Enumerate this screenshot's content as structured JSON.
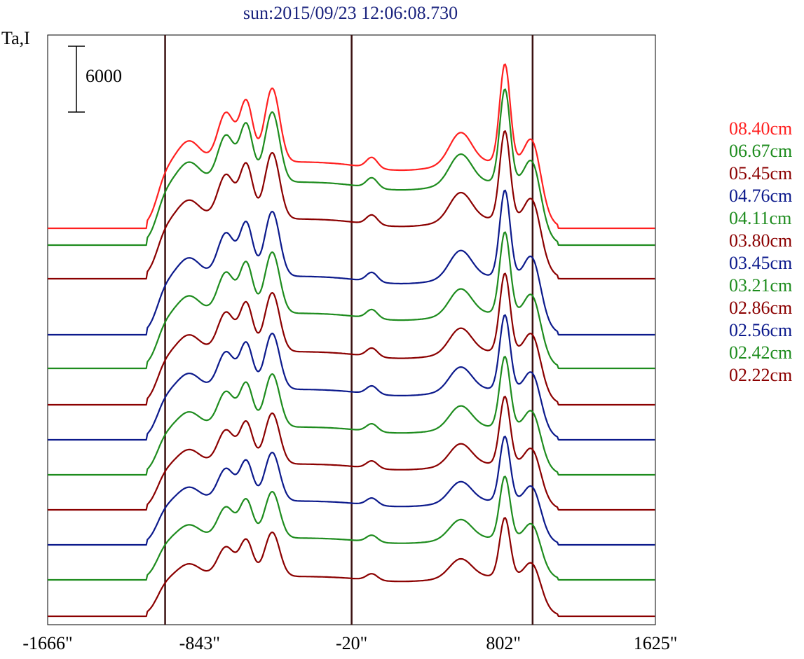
{
  "chart_data": {
    "type": "line",
    "title": "sun:2015/09/23 12:06:08.730",
    "ylabel": "Ta,I",
    "scale_bar": {
      "value": 6000,
      "label": "6000"
    },
    "x_ticks": [
      "-1666\"",
      "-843\"",
      "-20\"",
      "802\"",
      "1625\""
    ],
    "x_tick_values": [
      -1666,
      -843,
      -20,
      802,
      1625
    ],
    "xlim": [
      -1666,
      1625
    ],
    "vertical_lines": [
      -1030,
      -20,
      960
    ],
    "legend_placement": "right",
    "series": [
      {
        "name": "08.40cm",
        "color": "#ff2020",
        "baseline": 326,
        "amp": 1.0
      },
      {
        "name": "06.67cm",
        "color": "#1e8c1e",
        "baseline": 350,
        "amp": 0.95
      },
      {
        "name": "05.45cm",
        "color": "#8b0000",
        "baseline": 398,
        "amp": 0.9
      },
      {
        "name": "04.76cm",
        "color": "#0c1a8c",
        "baseline": 478,
        "amp": 0.88
      },
      {
        "name": "04.11cm",
        "color": "#1e8c1e",
        "baseline": 526,
        "amp": 0.83
      },
      {
        "name": "03.80cm",
        "color": "#8b0000",
        "baseline": 578,
        "amp": 0.8
      },
      {
        "name": "03.45cm",
        "color": "#0c1a8c",
        "baseline": 628,
        "amp": 0.76
      },
      {
        "name": "03.21cm",
        "color": "#1e8c1e",
        "baseline": 678,
        "amp": 0.72
      },
      {
        "name": "02.86cm",
        "color": "#8b0000",
        "baseline": 728,
        "amp": 0.69
      },
      {
        "name": "02.56cm",
        "color": "#0c1a8c",
        "baseline": 778,
        "amp": 0.66
      },
      {
        "name": "02.42cm",
        "color": "#1e8c1e",
        "baseline": 828,
        "amp": 0.63
      },
      {
        "name": "02.22cm",
        "color": "#8b0000",
        "baseline": 880,
        "amp": 0.6
      }
    ]
  }
}
